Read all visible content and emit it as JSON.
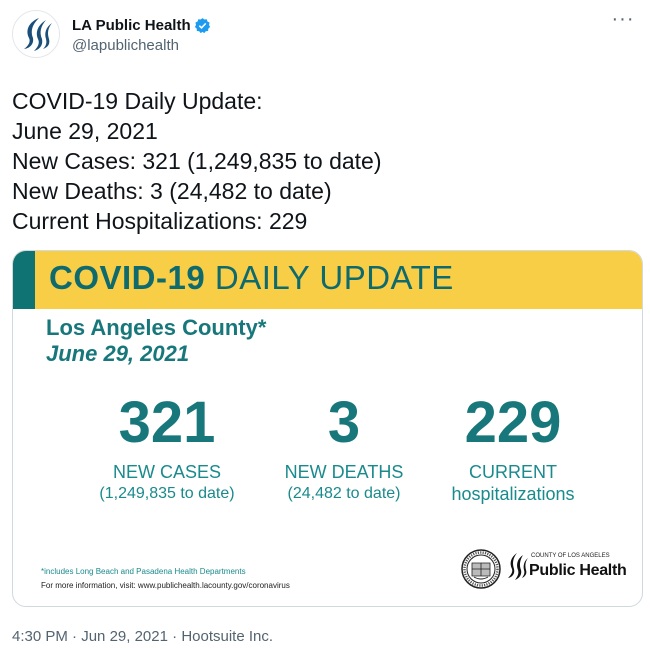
{
  "account": {
    "display_name": "LA Public Health",
    "handle": "@lapublichealth",
    "verified": true,
    "avatar_icon": "la-public-health-logo-icon",
    "more_icon": "more-dots-icon",
    "more_glyph": "···"
  },
  "tweet": {
    "lines": [
      "COVID-19 Daily Update:",
      "June 29, 2021",
      "New Cases: 321 (1,249,835 to date)",
      "New Deaths: 3 (24,482 to date)",
      "Current Hospitalizations: 229"
    ]
  },
  "card": {
    "banner_bold": "COVID-19",
    "banner_rest": "DAILY UPDATE",
    "county": "Los Angeles County*",
    "date": "June 29, 2021",
    "stats": [
      {
        "number": "321",
        "label": "NEW CASES",
        "sub": "(1,249,835 to date)"
      },
      {
        "number": "3",
        "label": "NEW DEATHS",
        "sub": "(24,482 to date)"
      },
      {
        "number": "229",
        "label": "CURRENT",
        "sub": "hospitalizations"
      }
    ],
    "footnote": "*includes Long Beach and Pasadena Health Departments",
    "more_info": "For more information, visit: www.publichealth.lacounty.gov/coronavirus",
    "logo_small": "COUNTY OF LOS ANGELES",
    "logo_big": "Public Health",
    "colors": {
      "banner": "#f7ce46",
      "teal": "#17777b"
    }
  },
  "footer": {
    "time": "4:30 PM",
    "date": "Jun 29, 2021",
    "source": "Hootsuite Inc.",
    "separator": "·"
  }
}
